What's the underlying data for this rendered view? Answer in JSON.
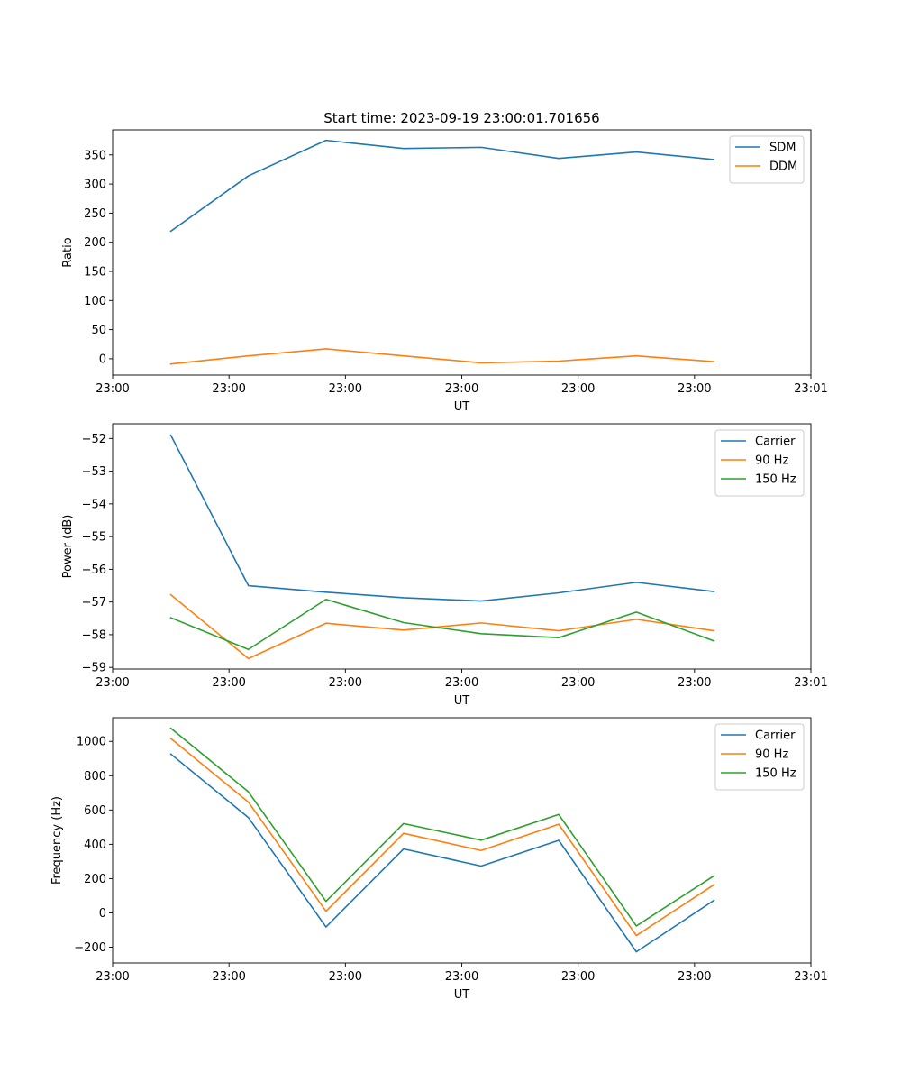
{
  "figure": {
    "title": "Start time: 2023-09-19 23:00:01.701656"
  },
  "colors": {
    "blue": "#1f77b4",
    "orange": "#ff7f0e",
    "green": "#2ca02c",
    "axis": "#000000",
    "legend_border": "#cccccc"
  },
  "chart_data": [
    {
      "type": "line",
      "title": "Start time: 2023-09-19 23:00:01.701656",
      "xlabel": "UT",
      "ylabel": "Ratio",
      "x": [
        1,
        2,
        3,
        4,
        5,
        6,
        7,
        8
      ],
      "xlim": [
        0.25,
        9.25
      ],
      "xticks": [
        0.25,
        1.75,
        3.25,
        4.75,
        6.25,
        7.75,
        9.25
      ],
      "xtick_labels": [
        "23:00",
        "23:00",
        "23:00",
        "23:00",
        "23:00",
        "23:00",
        "23:01"
      ],
      "ylim": [
        -28,
        393
      ],
      "yticks": [
        0,
        50,
        100,
        150,
        200,
        250,
        300,
        350
      ],
      "ytick_labels": [
        "0",
        "50",
        "100",
        "150",
        "200",
        "250",
        "300",
        "350"
      ],
      "legend_position": "top-right",
      "series": [
        {
          "name": "SDM",
          "color": "#1f77b4",
          "values": [
            219,
            314,
            375,
            361,
            363,
            344,
            355,
            342
          ]
        },
        {
          "name": "DDM",
          "color": "#ff7f0e",
          "values": [
            -9,
            5,
            17,
            5,
            -7,
            -4,
            5,
            -5
          ]
        }
      ]
    },
    {
      "type": "line",
      "title": "",
      "xlabel": "UT",
      "ylabel": "Power (dB)",
      "x": [
        1,
        2,
        3,
        4,
        5,
        6,
        7,
        8
      ],
      "xlim": [
        0.25,
        9.25
      ],
      "xticks": [
        0.25,
        1.75,
        3.25,
        4.75,
        6.25,
        7.75,
        9.25
      ],
      "xtick_labels": [
        "23:00",
        "23:00",
        "23:00",
        "23:00",
        "23:00",
        "23:00",
        "23:01"
      ],
      "ylim": [
        -59.05,
        -51.55
      ],
      "yticks": [
        -59,
        -58,
        -57,
        -56,
        -55,
        -54,
        -53,
        -52
      ],
      "ytick_labels": [
        "−59",
        "−58",
        "−57",
        "−56",
        "−55",
        "−54",
        "−53",
        "−52"
      ],
      "legend_position": "top-right",
      "series": [
        {
          "name": "Carrier",
          "color": "#1f77b4",
          "values": [
            -51.9,
            -56.5,
            -56.7,
            -56.87,
            -56.97,
            -56.72,
            -56.4,
            -56.68
          ]
        },
        {
          "name": "90 Hz",
          "color": "#ff7f0e",
          "values": [
            -56.78,
            -58.73,
            -57.65,
            -57.86,
            -57.64,
            -57.88,
            -57.53,
            -57.88
          ]
        },
        {
          "name": "150 Hz",
          "color": "#2ca02c",
          "values": [
            -57.48,
            -58.45,
            -56.92,
            -57.63,
            -57.97,
            -58.09,
            -57.31,
            -58.19
          ]
        }
      ]
    },
    {
      "type": "line",
      "title": "",
      "xlabel": "UT",
      "ylabel": "Frequency (Hz)",
      "x": [
        1,
        2,
        3,
        4,
        5,
        6,
        7,
        8
      ],
      "xlim": [
        0.25,
        9.25
      ],
      "xticks": [
        0.25,
        1.75,
        3.25,
        4.75,
        6.25,
        7.75,
        9.25
      ],
      "xtick_labels": [
        "23:00",
        "23:00",
        "23:00",
        "23:00",
        "23:00",
        "23:00",
        "23:01"
      ],
      "ylim": [
        -292,
        1138
      ],
      "yticks": [
        -200,
        0,
        200,
        400,
        600,
        800,
        1000
      ],
      "ytick_labels": [
        "−200",
        "0",
        "200",
        "400",
        "600",
        "800",
        "1000"
      ],
      "legend_position": "top-right",
      "series": [
        {
          "name": "Carrier",
          "color": "#1f77b4",
          "values": [
            926,
            556,
            -82,
            373,
            273,
            423,
            -227,
            73
          ]
        },
        {
          "name": "90 Hz",
          "color": "#ff7f0e",
          "values": [
            1017,
            646,
            10,
            464,
            364,
            517,
            -132,
            164
          ]
        },
        {
          "name": "150 Hz",
          "color": "#2ca02c",
          "values": [
            1077,
            706,
            67,
            521,
            424,
            574,
            -76,
            216
          ]
        }
      ]
    }
  ]
}
